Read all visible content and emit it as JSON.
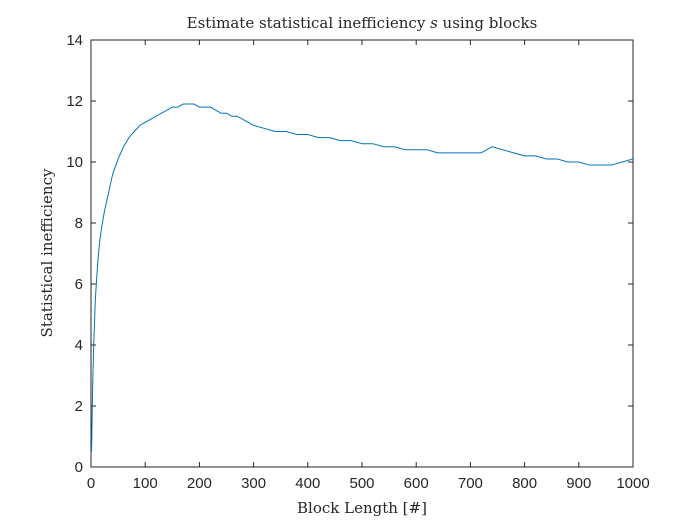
{
  "chart_data": {
    "type": "line",
    "title_prefix": "Estimate statistical inefficiency ",
    "title_symbol": "s",
    "title_suffix": " using blocks",
    "xlabel": "Block Length [#]",
    "ylabel": "Statistical inefficiency",
    "xlim": [
      0,
      1000
    ],
    "ylim": [
      0,
      14
    ],
    "xticks": [
      "0",
      "100",
      "200",
      "300",
      "400",
      "500",
      "600",
      "700",
      "800",
      "900",
      "1000"
    ],
    "yticks": [
      "0",
      "2",
      "4",
      "6",
      "8",
      "10",
      "12",
      "14"
    ],
    "grid": false,
    "line_color": "#0072BD",
    "series": [
      {
        "x": [
          1,
          2,
          3,
          5,
          8,
          12,
          16,
          20,
          25,
          30,
          40,
          50,
          60,
          70,
          80,
          90,
          100,
          110,
          120,
          130,
          140,
          150,
          160,
          170,
          180,
          190,
          200,
          210,
          220,
          230,
          240,
          250,
          260,
          270,
          280,
          290,
          300,
          320,
          340,
          360,
          380,
          400,
          420,
          440,
          460,
          480,
          500,
          520,
          540,
          560,
          580,
          600,
          620,
          640,
          660,
          680,
          700,
          720,
          740,
          760,
          780,
          800,
          820,
          840,
          860,
          880,
          900,
          920,
          940,
          960,
          980,
          1000
        ],
        "values": [
          0.5,
          1.5,
          2.6,
          4.0,
          5.5,
          6.6,
          7.4,
          7.9,
          8.4,
          8.8,
          9.6,
          10.1,
          10.5,
          10.8,
          11.0,
          11.2,
          11.3,
          11.4,
          11.5,
          11.6,
          11.7,
          11.8,
          11.8,
          11.9,
          11.9,
          11.9,
          11.8,
          11.8,
          11.8,
          11.7,
          11.6,
          11.6,
          11.5,
          11.5,
          11.4,
          11.3,
          11.2,
          11.1,
          11.0,
          11.0,
          10.9,
          10.9,
          10.8,
          10.8,
          10.7,
          10.7,
          10.6,
          10.6,
          10.5,
          10.5,
          10.4,
          10.4,
          10.4,
          10.3,
          10.3,
          10.3,
          10.3,
          10.3,
          10.5,
          10.4,
          10.3,
          10.2,
          10.2,
          10.1,
          10.1,
          10.0,
          10.0,
          9.9,
          9.9,
          9.9,
          10.0,
          10.1
        ]
      }
    ]
  }
}
